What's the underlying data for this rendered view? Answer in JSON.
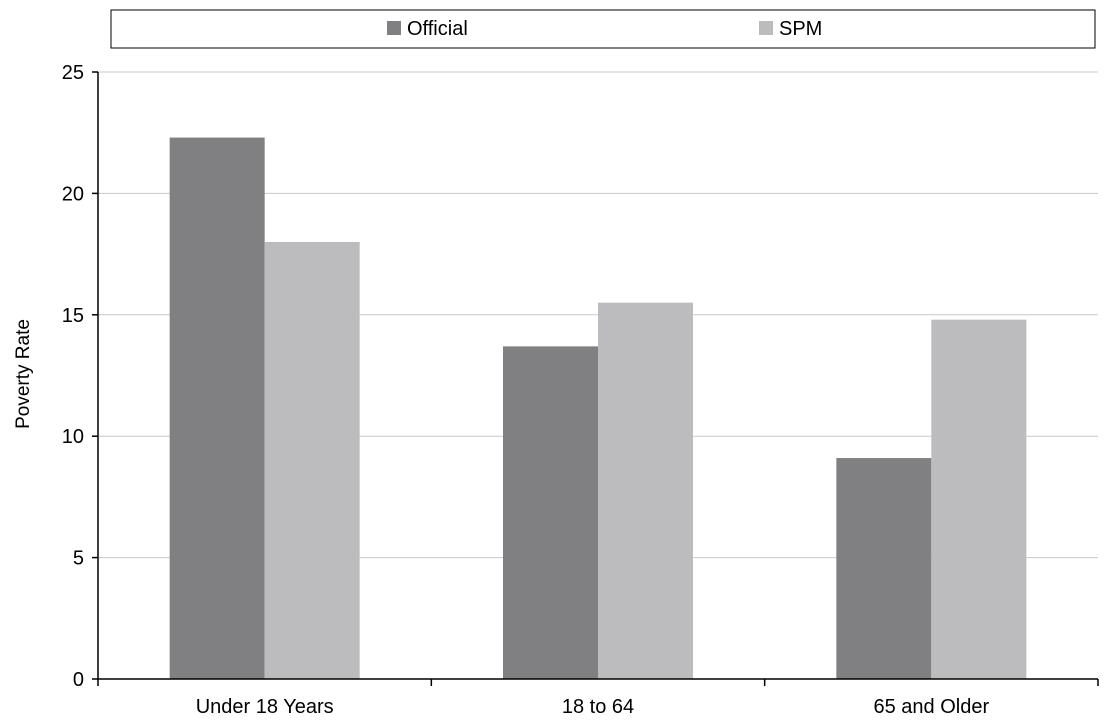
{
  "chart_data": {
    "type": "bar",
    "categories": [
      "Under 18 Years",
      "18 to 64",
      "65 and Older"
    ],
    "series": [
      {
        "name": "Official",
        "values": [
          22.3,
          13.7,
          9.1
        ],
        "color": "#808083"
      },
      {
        "name": "SPM",
        "values": [
          18.0,
          15.5,
          14.8
        ],
        "color": "#bcbcbe"
      }
    ],
    "ylabel": "Poverty Rate",
    "xlabel": "",
    "ylim": [
      0,
      25
    ],
    "yticks": [
      0,
      5,
      10,
      15,
      20,
      25
    ],
    "grid": true,
    "legend": "top"
  }
}
